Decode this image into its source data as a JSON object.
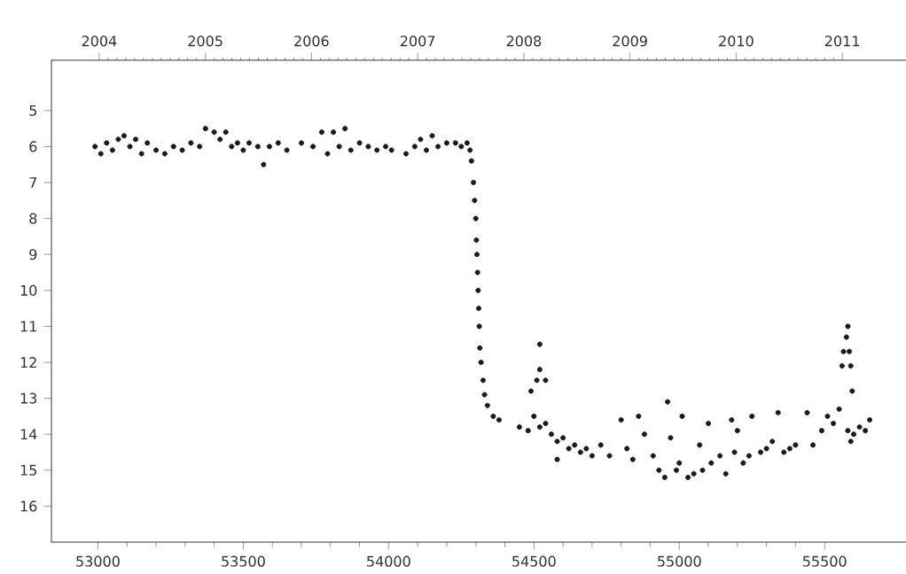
{
  "chart_data": {
    "type": "scatter",
    "marker": "circle",
    "xlim": [
      52840,
      55780
    ],
    "xticks": [
      53000,
      53500,
      54000,
      54500,
      55000,
      55500
    ],
    "ylim": [
      17.0,
      3.6
    ],
    "yticks": [
      5,
      6,
      7,
      8,
      9,
      10,
      11,
      12,
      13,
      14,
      15,
      16
    ],
    "x2lim": [
      2003.55,
      2011.6
    ],
    "x2ticks": [
      2004,
      2005,
      2006,
      2007,
      2008,
      2009,
      2010,
      2011
    ],
    "series": [
      {
        "color": "#1a1a1a",
        "x": [
          52990,
          53010,
          53030,
          53050,
          53070,
          53090,
          53110,
          53130,
          53150,
          53170,
          53200,
          53230,
          53260,
          53290,
          53320,
          53350,
          53370,
          53400,
          53420,
          53440,
          53460,
          53480,
          53500,
          53520,
          53550,
          53570,
          53590,
          53620,
          53650,
          53700,
          53740,
          53770,
          53790,
          53810,
          53830,
          53850,
          53870,
          53900,
          53930,
          53960,
          53990,
          54010,
          54060,
          54090,
          54110,
          54130,
          54150,
          54170,
          54200,
          54230,
          54250,
          54270,
          54280,
          54285,
          54292,
          54296,
          54300,
          54302,
          54304,
          54306,
          54308,
          54310,
          54312,
          54314,
          54318,
          54325,
          54330,
          54340,
          54360,
          54380,
          54450,
          54480,
          54500,
          54520,
          54540,
          54560,
          54580,
          54600,
          54620,
          54640,
          54660,
          54680,
          54700,
          54730,
          54760,
          54800,
          54820,
          54840,
          54860,
          54880,
          54580,
          54490,
          54520,
          54520,
          54510,
          54540,
          54910,
          54930,
          54950,
          54960,
          54970,
          54990,
          55000,
          55010,
          55030,
          55050,
          55070,
          55080,
          55100,
          55110,
          55140,
          55160,
          55180,
          55190,
          55200,
          55220,
          55240,
          55250,
          55280,
          55300,
          55320,
          55340,
          55360,
          55380,
          55400,
          55440,
          55460,
          55490,
          55510,
          55530,
          55550,
          55560,
          55565,
          55575,
          55580,
          55585,
          55590,
          55595,
          55580,
          55590,
          55600,
          55620,
          55640,
          55655
        ],
        "values": [
          6.0,
          6.2,
          5.9,
          6.1,
          5.8,
          5.7,
          6.0,
          5.8,
          6.2,
          5.9,
          6.1,
          6.2,
          6.0,
          6.1,
          5.9,
          6.0,
          5.5,
          5.6,
          5.8,
          5.6,
          6.0,
          5.9,
          6.1,
          5.9,
          6.0,
          6.5,
          6.0,
          5.9,
          6.1,
          5.9,
          6.0,
          5.6,
          6.2,
          5.6,
          6.0,
          5.5,
          6.1,
          5.9,
          6.0,
          6.1,
          6.0,
          6.1,
          6.2,
          6.0,
          5.8,
          6.1,
          5.7,
          6.0,
          5.9,
          5.9,
          6.0,
          5.9,
          6.1,
          6.4,
          7.0,
          7.5,
          8.0,
          8.6,
          9.0,
          9.5,
          10.0,
          10.5,
          11.0,
          11.6,
          12.0,
          12.5,
          12.9,
          13.2,
          13.5,
          13.6,
          13.8,
          13.9,
          13.5,
          13.8,
          13.7,
          14.0,
          14.2,
          14.1,
          14.4,
          14.3,
          14.5,
          14.4,
          14.6,
          14.3,
          14.6,
          13.6,
          14.4,
          14.7,
          13.5,
          14.0,
          14.7,
          12.8,
          11.5,
          12.2,
          12.5,
          12.5,
          14.6,
          15.0,
          15.2,
          13.1,
          14.1,
          15.0,
          14.8,
          13.5,
          15.2,
          15.1,
          14.3,
          15.0,
          13.7,
          14.8,
          14.6,
          15.1,
          13.6,
          14.5,
          13.9,
          14.8,
          14.6,
          13.5,
          14.5,
          14.4,
          14.2,
          13.4,
          14.5,
          14.4,
          14.3,
          13.4,
          14.3,
          13.9,
          13.5,
          13.7,
          13.3,
          12.1,
          11.7,
          11.3,
          11.0,
          11.7,
          12.1,
          12.8,
          13.9,
          14.2,
          14.0,
          13.8,
          13.9,
          13.6
        ]
      }
    ]
  }
}
